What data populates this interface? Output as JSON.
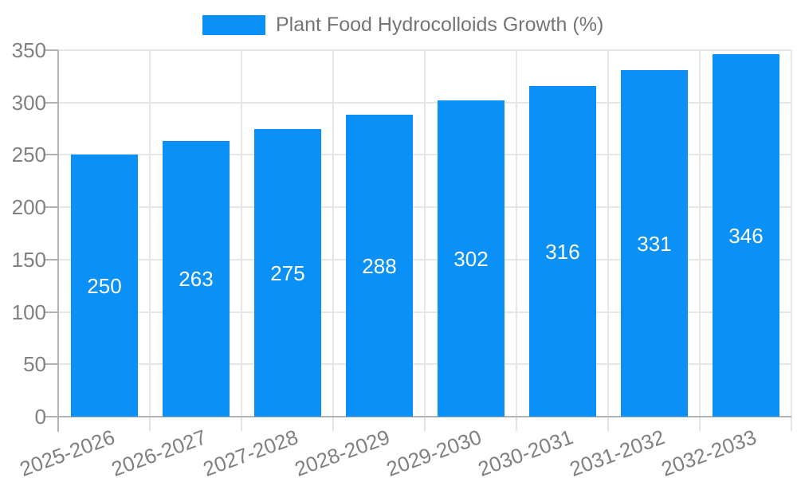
{
  "legend": {
    "label": "Plant Food Hydrocolloids Growth (%)"
  },
  "colors": {
    "bar": "#0A90F6",
    "grid": "#E6E6E6",
    "axis": "#B3B3B3",
    "minor_tick": "#E3E3E3",
    "axis_label": "#808080",
    "legend_label": "#757575",
    "value_label": "#FFFFFF",
    "background": "#FFFFFF"
  },
  "chart_data": {
    "type": "bar",
    "title": "Plant Food Hydrocolloids Growth (%)",
    "categories": [
      "2025-2026",
      "2026-2027",
      "2027-2028",
      "2028-2029",
      "2029-2030",
      "2030-2031",
      "2031-2032",
      "2032-2033"
    ],
    "series": [
      {
        "name": "Plant Food Hydrocolloids Growth (%)",
        "values": [
          250,
          263,
          275,
          288,
          302,
          316,
          331,
          346
        ]
      }
    ],
    "bar_value_labels": [
      "250",
      "263",
      "275",
      "288",
      "302",
      "316",
      "331",
      "346"
    ],
    "xlabel": "",
    "ylabel": "",
    "ylim": [
      0,
      350
    ],
    "yticks": [
      0,
      50,
      100,
      150,
      200,
      250,
      300,
      350
    ],
    "grid": true,
    "vertical_category_separators": true,
    "legend_position": "top",
    "value_labels_inside_bars": true,
    "x_label_rotation_deg": -20
  }
}
